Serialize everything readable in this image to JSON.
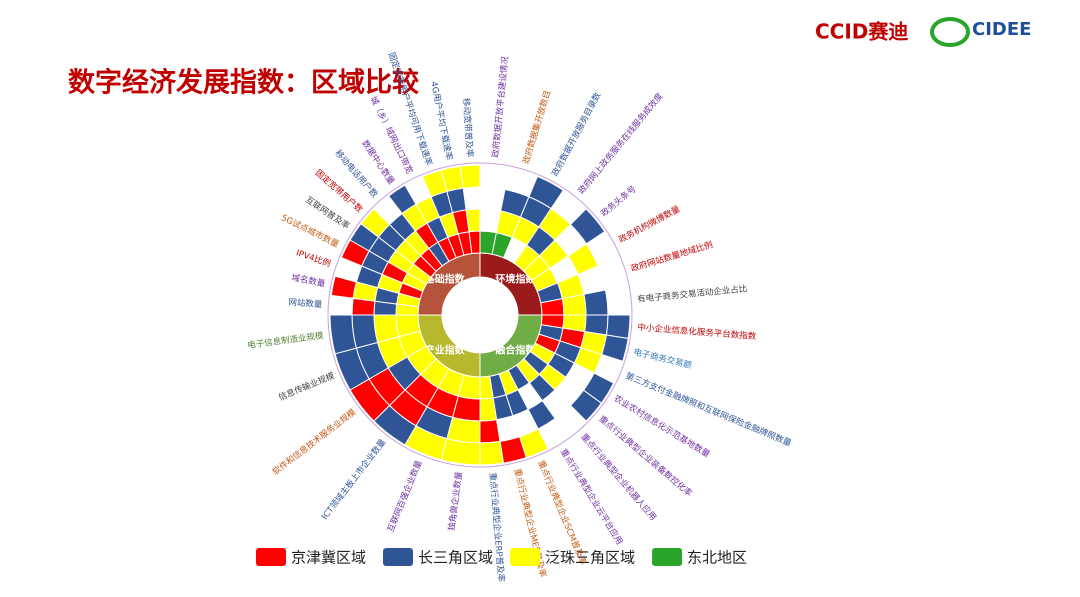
{
  "header": {
    "title": "数字经济发展指数：区域比较",
    "logo_ccid": "CCID赛迪",
    "logo_cidee": "CIDEE"
  },
  "chart_data": {
    "type": "sunburst",
    "series": [
      {
        "name": "京津冀区域",
        "color": "#ff0000"
      },
      {
        "name": "长三角区域",
        "color": "#2f5597"
      },
      {
        "name": "泛珠三角区域",
        "color": "#ffff00"
      },
      {
        "name": "东北地区",
        "color": "#2aa52a"
      }
    ],
    "groups": [
      {
        "name": "环境指数",
        "color": "#9b1b1b",
        "indicators": [
          {
            "label": "政府数据开放平台建设情况",
            "color": "#7030a0",
            "rings": [
              3,
              null,
              null,
              null
            ]
          },
          {
            "label": "政府数据集开放数目",
            "color": "#c55a11",
            "rings": [
              3,
              2,
              1,
              null
            ]
          },
          {
            "label": "政府数据开放服务目录数",
            "color": "#2f5597",
            "rings": [
              null,
              2,
              1,
              1
            ]
          },
          {
            "label": "政府网上政务服务在线服务成效度",
            "color": "#7030a0",
            "rings": [
              2,
              1,
              2,
              null
            ]
          },
          {
            "label": "政务头条号",
            "color": "#7030a0",
            "rings": [
              2,
              2,
              null,
              1
            ]
          },
          {
            "label": "政务机构微博数量",
            "color": "#c00000",
            "rings": [
              2,
              null,
              2,
              null
            ]
          },
          {
            "label": "政府网站数量地域比例",
            "color": "#c00000",
            "rings": [
              1,
              2,
              null,
              null
            ]
          },
          {
            "label": "有电子商务交易活动企业占比",
            "color": "#404040",
            "rings": [
              0,
              2,
              1,
              null
            ]
          }
        ]
      },
      {
        "name": "融合指数",
        "color": "#70ad47",
        "indicators": [
          {
            "label": "中小企业信息化服务平台数指数",
            "color": "#c00000",
            "rings": [
              0,
              2,
              1,
              1
            ]
          },
          {
            "label": "电子商务交易额",
            "color": "#2e75b6",
            "rings": [
              1,
              0,
              2,
              1
            ]
          },
          {
            "label": "第三方支付金融牌照和互联网保险金融牌照数量",
            "color": "#2f5597",
            "rings": [
              0,
              1,
              2,
              null
            ]
          },
          {
            "label": "农业农村信息化示范基地数量",
            "color": "#7030a0",
            "rings": [
              2,
              1,
              null,
              1
            ]
          },
          {
            "label": "重点行业典型企业装备数控化率",
            "color": "#7030a0",
            "rings": [
              1,
              2,
              null,
              1
            ]
          },
          {
            "label": "重点行业典型企业机器人应用",
            "color": "#7030a0",
            "rings": [
              2,
              1,
              null,
              null
            ]
          },
          {
            "label": "重点行业典型企业云平台应用",
            "color": "#7030a0",
            "rings": [
              1,
              null,
              1,
              null
            ]
          },
          {
            "label": "重点行业典型企业SCM普及率",
            "color": "#c55a11",
            "rings": [
              2,
              1,
              null,
              2
            ]
          },
          {
            "label": "重点行业典型企业MES普及率",
            "color": "#c55a11",
            "rings": [
              1,
              1,
              null,
              0
            ]
          },
          {
            "label": "重点行业典型企业ERP普及率",
            "color": "#2f5597",
            "rings": [
              2,
              2,
              0,
              2
            ]
          }
        ]
      },
      {
        "name": "产业指数",
        "color": "#b8b82e",
        "indicators": [
          {
            "label": "独角兽企业数量",
            "color": "#7030a0",
            "rings": [
              2,
              0,
              2,
              2
            ]
          },
          {
            "label": "互联网百强企业数量",
            "color": "#7030a0",
            "rings": [
              2,
              0,
              1,
              2
            ]
          },
          {
            "label": "ICT领域主板上市企业数量",
            "color": "#2f5597",
            "rings": [
              2,
              0,
              0,
              1
            ]
          },
          {
            "label": "软件和信息技术服务业规模",
            "color": "#c55a11",
            "rings": [
              2,
              1,
              0,
              0
            ]
          },
          {
            "label": "信息传输业规模",
            "color": "#404040",
            "rings": [
              2,
              2,
              1,
              1
            ]
          },
          {
            "label": "电子信息制造业规模",
            "color": "#548235",
            "rings": [
              2,
              2,
              1,
              1
            ]
          }
        ]
      },
      {
        "name": "基础指数",
        "color": "#b5543a",
        "indicators": [
          {
            "label": "网站数量",
            "color": "#2f5597",
            "rings": [
              2,
              1,
              0,
              null
            ]
          },
          {
            "label": "域名数量",
            "color": "#7030a0",
            "rings": [
              2,
              1,
              2,
              0
            ]
          },
          {
            "label": "IPV4比例",
            "color": "#c00000",
            "rings": [
              0,
              2,
              1,
              null
            ]
          },
          {
            "label": "5G试点城市数量",
            "color": "#c55a11",
            "rings": [
              2,
              0,
              1,
              0
            ]
          },
          {
            "label": "互联网普及率",
            "color": "#404040",
            "rings": [
              2,
              2,
              1,
              1
            ]
          },
          {
            "label": "固定宽带用户数",
            "color": "#c00000",
            "rings": [
              0,
              2,
              1,
              2
            ]
          },
          {
            "label": "移动电话用户数",
            "color": "#2f5597",
            "rings": [
              0,
              2,
              1,
              null
            ]
          },
          {
            "label": "数据中心数量",
            "color": "#7030a0",
            "rings": [
              1,
              0,
              2,
              1
            ]
          },
          {
            "label": "城（乡）域网出口带宽",
            "color": "#7030a0",
            "rings": [
              0,
              1,
              2,
              null
            ]
          },
          {
            "label": "固定宽带用户平均可用下载速率",
            "color": "#2f5597",
            "rings": [
              0,
              2,
              1,
              2
            ]
          },
          {
            "label": "4G用户平均下载速率",
            "color": "#2f5597",
            "rings": [
              0,
              0,
              1,
              2
            ]
          },
          {
            "label": "移动宽带普及率",
            "color": "#2f5597",
            "rings": [
              0,
              2,
              null,
              2
            ]
          }
        ]
      }
    ]
  }
}
